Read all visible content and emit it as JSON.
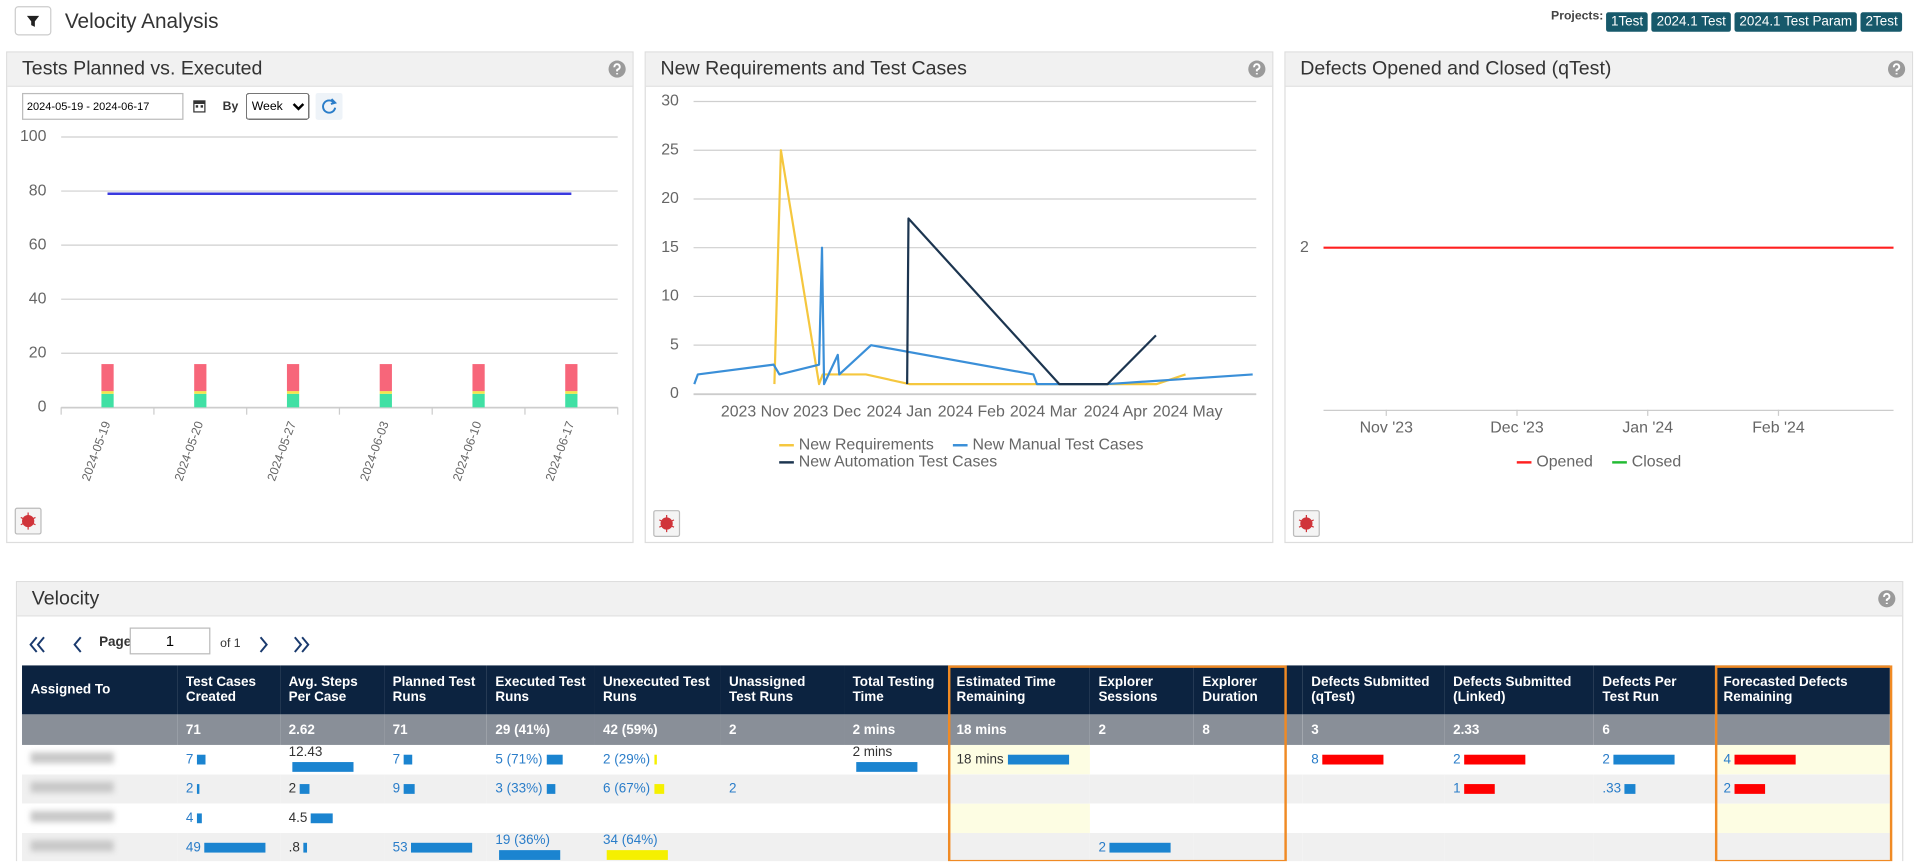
{
  "header": {
    "title": "Velocity Analysis",
    "projects_label": "Projects:",
    "projects": [
      "1Test",
      "2024.1 Test",
      "2024.1 Test Param",
      "2Test"
    ]
  },
  "chart_data": [
    {
      "type": "bar",
      "title": "Tests Planned vs. Executed",
      "date_range": "2024-05-19 - 2024-06-17",
      "by_label": "By",
      "period": "Week",
      "categories": [
        "2024-05-19",
        "2024-05-20",
        "2024-05-27",
        "2024-06-03",
        "2024-06-10",
        "2024-06-17"
      ],
      "stacked": true,
      "series": [
        {
          "color": "#40e0a4",
          "values": [
            5,
            5,
            5,
            5,
            5,
            5
          ]
        },
        {
          "color": "#f2e64a",
          "values": [
            1,
            1,
            1,
            1,
            1,
            1
          ]
        },
        {
          "color": "#f7667a",
          "values": [
            10,
            10,
            10,
            10,
            10,
            10
          ]
        },
        {
          "type": "line",
          "color": "#3a3adf",
          "values": [
            79,
            79,
            79,
            79,
            79,
            79
          ]
        }
      ],
      "ylim": [
        0,
        100
      ],
      "yticks": [
        0,
        20,
        40,
        60,
        80,
        100
      ],
      "grid": true
    },
    {
      "type": "line",
      "title": "New Requirements and Test Cases",
      "series": [
        {
          "name": "New Requirements",
          "color": "#f5c73e",
          "x": [
            0.27,
            0.36,
            0.89,
            0.94,
            1.54,
            2.14,
            2.92,
            3.95,
            5.57,
            5.97
          ],
          "values": [
            1,
            25,
            1,
            2,
            2,
            1,
            1,
            1,
            1,
            2
          ]
        },
        {
          "name": "New Manual Test Cases",
          "color": "#3a8fd8",
          "x": [
            -0.84,
            -0.79,
            0.26,
            0.34,
            0.89,
            0.93,
            0.96,
            1.15,
            1.17,
            1.61,
            3.86,
            3.91,
            4.89,
            6.9
          ],
          "values": [
            1,
            2,
            3,
            2,
            3,
            15,
            1,
            4,
            2,
            5,
            2,
            1,
            1,
            2
          ]
        },
        {
          "name": "New Automation Test Cases",
          "color": "#1c3550",
          "x": [
            2.11,
            2.13,
            4.22,
            4.89,
            5.56
          ],
          "values": [
            1,
            18,
            1,
            1,
            6
          ]
        }
      ],
      "xlim": [
        -0.85,
        6.95
      ],
      "xticks": [
        {
          "value": 0,
          "label": "2023 Nov"
        },
        {
          "value": 1,
          "label": "2023 Dec"
        },
        {
          "value": 2,
          "label": "2024 Jan"
        },
        {
          "value": 3,
          "label": "2024 Feb"
        },
        {
          "value": 4,
          "label": "2024 Mar"
        },
        {
          "value": 5,
          "label": "2024 Apr"
        },
        {
          "value": 6,
          "label": "2024 May"
        }
      ],
      "ylim": [
        0,
        30
      ],
      "yticks": [
        0,
        5,
        10,
        15,
        20,
        25,
        30
      ],
      "grid": true
    },
    {
      "type": "line",
      "title": "Defects Opened and Closed (qTest)",
      "series": [
        {
          "name": "Opened",
          "color": "#ff2020",
          "x": [
            -0.48,
            3.88
          ],
          "values": [
            2,
            2
          ]
        },
        {
          "name": "Closed",
          "color": "#22bb33",
          "x": [],
          "values": []
        }
      ],
      "xlim": [
        -0.48,
        3.88
      ],
      "xticks": [
        {
          "value": 0,
          "label": "Nov '23"
        },
        {
          "value": 1,
          "label": "Dec '23"
        },
        {
          "value": 2,
          "label": "Jan '24"
        },
        {
          "value": 3,
          "label": "Feb '24"
        }
      ],
      "x_tick_marks": true,
      "ylim": [
        1,
        3
      ],
      "yticks": [
        2
      ],
      "grid": false
    }
  ],
  "velocity": {
    "title": "Velocity",
    "pager": {
      "page_label": "Page",
      "page": 1,
      "of": "of 1"
    },
    "columns": [
      "Assigned To",
      "Test Cases Created",
      "Avg. Steps Per Case",
      "Planned Test Runs",
      "Executed Test Runs",
      "Unexecuted Test Runs",
      "Unassigned Test Runs",
      "Total Testing Time",
      "Estimated Time Remaining",
      "Explorer Sessions",
      "Explorer Duration",
      "Defects Submitted (qTest)",
      "Defects Submitted (Linked)",
      "Defects Per Test Run",
      "Forecasted Defects Remaining"
    ],
    "column_bar_colors": [
      null,
      "#1b84d0",
      "#1b84d0",
      "#1b84d0",
      "#1b84d0",
      "#f5f000",
      null,
      "#1b84d0",
      "#1b84d0",
      "#1b84d0",
      "#1b84d0",
      "#ff0000",
      "#ff0000",
      "#1b84d0",
      "#ff0000"
    ],
    "totals": [
      null,
      71,
      2.62,
      71,
      "29 (41%)",
      "42 (59%)",
      2,
      "2 mins",
      "18 mins",
      2,
      8,
      3,
      2.33,
      6,
      null
    ],
    "rows": [
      [
        null,
        7,
        12.43,
        7,
        {
          "value": 5,
          "label": "5 (71%)"
        },
        {
          "value": 2,
          "label": "2 (29%)"
        },
        null,
        {
          "value": 2,
          "label": "2 mins"
        },
        {
          "value": 18,
          "label": "18 mins"
        },
        null,
        null,
        8,
        2,
        2,
        4
      ],
      [
        null,
        2,
        2,
        9,
        {
          "value": 3,
          "label": "3 (33%)"
        },
        {
          "value": 6,
          "label": "6 (67%)"
        },
        2,
        null,
        null,
        null,
        null,
        null,
        1,
        {
          "value": 0.33,
          "label": ".33"
        },
        2
      ],
      [
        null,
        4,
        4.5,
        null,
        null,
        null,
        null,
        null,
        null,
        null,
        null,
        null,
        null,
        null,
        null
      ],
      [
        null,
        49,
        {
          "value": 0.8,
          "label": ".8"
        },
        53,
        {
          "value": 19,
          "label": "19 (36%)"
        },
        {
          "value": 34,
          "label": "34 (64%)"
        },
        null,
        null,
        null,
        2,
        null,
        null,
        null,
        null,
        null
      ]
    ]
  }
}
